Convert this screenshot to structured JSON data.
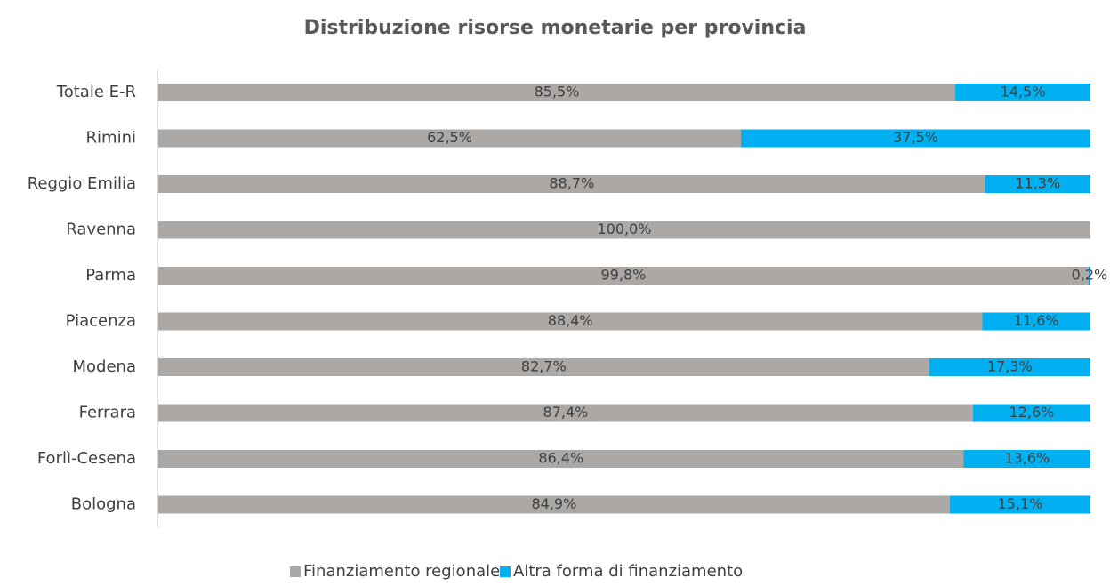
{
  "chart_data": {
    "type": "stacked-bar-horizontal",
    "title": "Distribuzione risorse monetarie per provincia",
    "categories": [
      "Totale E-R",
      "Rimini",
      "Reggio Emilia",
      "Ravenna",
      "Parma",
      "Piacenza",
      "Modena",
      "Ferrara",
      "Forlì-Cesena",
      "Bologna"
    ],
    "series": [
      {
        "name": "Finanziamento regionale",
        "color": "#aba8a6",
        "values": [
          85.5,
          62.5,
          88.7,
          100.0,
          99.8,
          88.4,
          82.7,
          87.4,
          86.4,
          84.9
        ],
        "value_labels": [
          "85,5%",
          "62,5%",
          "88,7%",
          "100,0%",
          "99,8%",
          "88,4%",
          "82,7%",
          "87,4%",
          "86,4%",
          "84,9%"
        ]
      },
      {
        "name": "Altra forma di finanziamento",
        "color": "#00b0f0",
        "values": [
          14.5,
          37.5,
          11.3,
          0,
          0.2,
          11.6,
          17.3,
          12.6,
          13.6,
          15.1
        ],
        "value_labels": [
          "14,5%",
          "37,5%",
          "11,3%",
          null,
          "0,2%",
          "11,6%",
          "17,3%",
          "12,6%",
          "13,6%",
          "15,1%"
        ]
      }
    ],
    "xlim": [
      0,
      100
    ],
    "legend": "bottom"
  }
}
